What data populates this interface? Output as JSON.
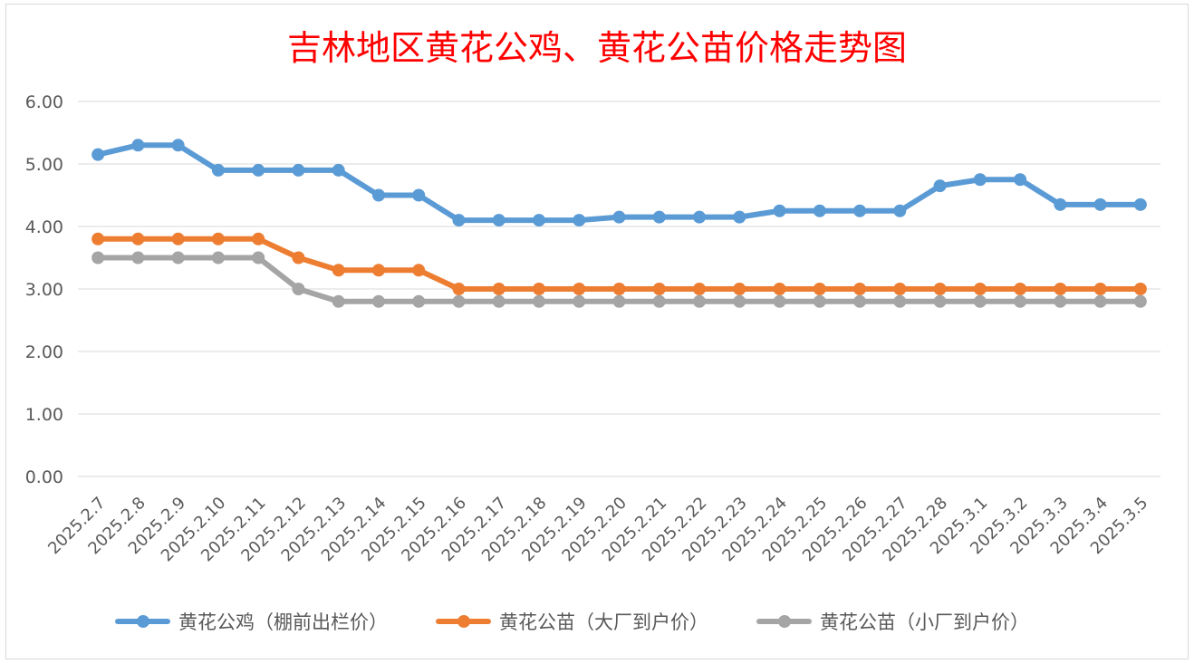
{
  "chart_data": {
    "type": "line",
    "title": "吉林地区黄花公鸡、黄花公苗价格走势图",
    "xlabel": "",
    "ylabel": "",
    "ylim": [
      0,
      6
    ],
    "yticks": [
      "0.00",
      "1.00",
      "2.00",
      "3.00",
      "4.00",
      "5.00",
      "6.00"
    ],
    "grid": true,
    "legend_position": "bottom",
    "categories": [
      "2025.2.7",
      "2025.2.8",
      "2025.2.9",
      "2025.2.10",
      "2025.2.11",
      "2025.2.12",
      "2025.2.13",
      "2025.2.14",
      "2025.2.15",
      "2025.2.16",
      "2025.2.17",
      "2025.2.18",
      "2025.2.19",
      "2025.2.20",
      "2025.2.21",
      "2025.2.22",
      "2025.2.23",
      "2025.2.24",
      "2025.2.25",
      "2025.2.26",
      "2025.2.27",
      "2025.2.28",
      "2025.3.1",
      "2025.3.2",
      "2025.3.3",
      "2025.3.4",
      "2025.3.5"
    ],
    "series": [
      {
        "name": "黄花公鸡（棚前出栏价）",
        "color": "#5b9bd5",
        "values": [
          5.15,
          5.3,
          5.3,
          4.9,
          4.9,
          4.9,
          4.9,
          4.5,
          4.5,
          4.1,
          4.1,
          4.1,
          4.1,
          4.15,
          4.15,
          4.15,
          4.15,
          4.25,
          4.25,
          4.25,
          4.25,
          4.65,
          4.75,
          4.75,
          4.35,
          4.35,
          4.35
        ]
      },
      {
        "name": "黄花公苗（大厂到户价）",
        "color": "#ed7d31",
        "values": [
          3.8,
          3.8,
          3.8,
          3.8,
          3.8,
          3.5,
          3.3,
          3.3,
          3.3,
          3.0,
          3.0,
          3.0,
          3.0,
          3.0,
          3.0,
          3.0,
          3.0,
          3.0,
          3.0,
          3.0,
          3.0,
          3.0,
          3.0,
          3.0,
          3.0,
          3.0,
          3.0
        ]
      },
      {
        "name": "黄花公苗（小厂到户价）",
        "color": "#a5a5a5",
        "values": [
          3.5,
          3.5,
          3.5,
          3.5,
          3.5,
          3.0,
          2.8,
          2.8,
          2.8,
          2.8,
          2.8,
          2.8,
          2.8,
          2.8,
          2.8,
          2.8,
          2.8,
          2.8,
          2.8,
          2.8,
          2.8,
          2.8,
          2.8,
          2.8,
          2.8,
          2.8,
          2.8
        ]
      }
    ]
  }
}
